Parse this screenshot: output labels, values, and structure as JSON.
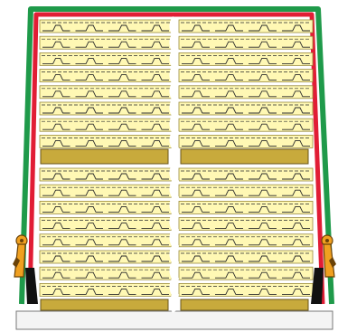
{
  "diagram": {
    "colors": {
      "panel_face": "#fff8b4",
      "panel_edge": "#9a8a3a",
      "panel_line": "#2a2a2a",
      "pallet_wood": "#c8aa3c",
      "pallet_edge": "#6a561a",
      "frame_green": "#1f9a4a",
      "frame_red": "#e11d35",
      "base_fill": "#f4f4f4",
      "base_edge": "#777777",
      "strap_black": "#111111",
      "latch_orange": "#f0a020",
      "latch_dark": "#6a4208"
    },
    "stacks": [
      {
        "name": "upper",
        "panels_per_column": 8
      },
      {
        "name": "lower",
        "panels_per_column": 8
      }
    ],
    "columns": 2,
    "latches": [
      "left-latch",
      "right-latch"
    ]
  }
}
